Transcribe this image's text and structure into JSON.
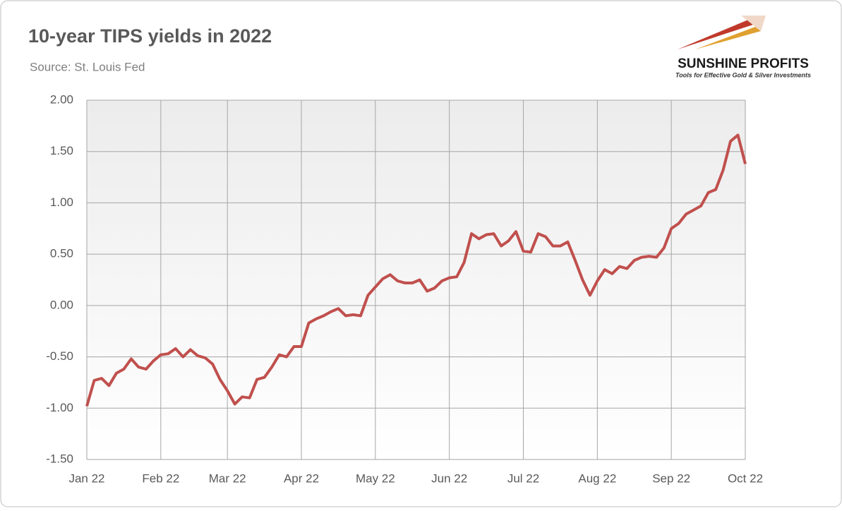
{
  "chart_data": {
    "type": "line",
    "title": "10-year TIPS yields in 2022",
    "subtitle": "Source: St. Louis Fed",
    "categories": [
      "Jan 22",
      null,
      null,
      null,
      null,
      null,
      null,
      null,
      null,
      null,
      "Feb 22",
      null,
      null,
      null,
      null,
      null,
      null,
      null,
      null,
      "Mar 22",
      null,
      null,
      null,
      null,
      null,
      null,
      null,
      null,
      null,
      "Apr 22",
      null,
      null,
      null,
      null,
      null,
      null,
      null,
      null,
      null,
      "May 22",
      null,
      null,
      null,
      null,
      null,
      null,
      null,
      null,
      null,
      "Jun 22",
      null,
      null,
      null,
      null,
      null,
      null,
      null,
      null,
      null,
      "Jul 22",
      null,
      null,
      null,
      null,
      null,
      null,
      null,
      null,
      null,
      "Aug 22",
      null,
      null,
      null,
      null,
      null,
      null,
      null,
      null,
      null,
      "Sep 22",
      null,
      null,
      null,
      null,
      null,
      null,
      null,
      null,
      null,
      "Oct 22"
    ],
    "series": [
      {
        "name": "10-year TIPS yield",
        "color": "#c0504d",
        "values": [
          -0.98,
          -0.73,
          -0.71,
          -0.78,
          -0.66,
          -0.62,
          -0.52,
          -0.6,
          -0.62,
          -0.54,
          -0.48,
          -0.47,
          -0.42,
          -0.5,
          -0.43,
          -0.49,
          -0.51,
          -0.57,
          -0.72,
          -0.83,
          -0.96,
          -0.89,
          -0.9,
          -0.72,
          -0.7,
          -0.6,
          -0.48,
          -0.5,
          -0.4,
          -0.4,
          -0.17,
          -0.13,
          -0.1,
          -0.06,
          -0.03,
          -0.1,
          -0.09,
          -0.1,
          0.1,
          0.18,
          0.26,
          0.3,
          0.24,
          0.22,
          0.22,
          0.25,
          0.14,
          0.17,
          0.24,
          0.27,
          0.28,
          0.42,
          0.7,
          0.65,
          0.69,
          0.7,
          0.58,
          0.63,
          0.72,
          0.53,
          0.52,
          0.7,
          0.67,
          0.58,
          0.58,
          0.62,
          0.44,
          0.25,
          0.1,
          0.24,
          0.35,
          0.31,
          0.38,
          0.36,
          0.44,
          0.47,
          0.48,
          0.47,
          0.56,
          0.75,
          0.8,
          0.89,
          0.93,
          0.97,
          1.1,
          1.13,
          1.32,
          1.6,
          1.66,
          1.38
        ]
      }
    ],
    "ylim": [
      -1.5,
      2
    ],
    "yticks": [
      {
        "value": -1.5,
        "label": "-1.50"
      },
      {
        "value": -1,
        "label": "-1.00"
      },
      {
        "value": -0.5,
        "label": "-0.50"
      },
      {
        "value": 0,
        "label": "0.00"
      },
      {
        "value": 0.5,
        "label": "0.50"
      },
      {
        "value": 1,
        "label": "1.00"
      },
      {
        "value": 1.5,
        "label": "1.50"
      },
      {
        "value": 2,
        "label": "2.00"
      }
    ],
    "grid": true
  },
  "logo": {
    "name": "SUNSHINE PROFITS",
    "tagline": "Tools for Effective Gold & Silver Investments"
  }
}
